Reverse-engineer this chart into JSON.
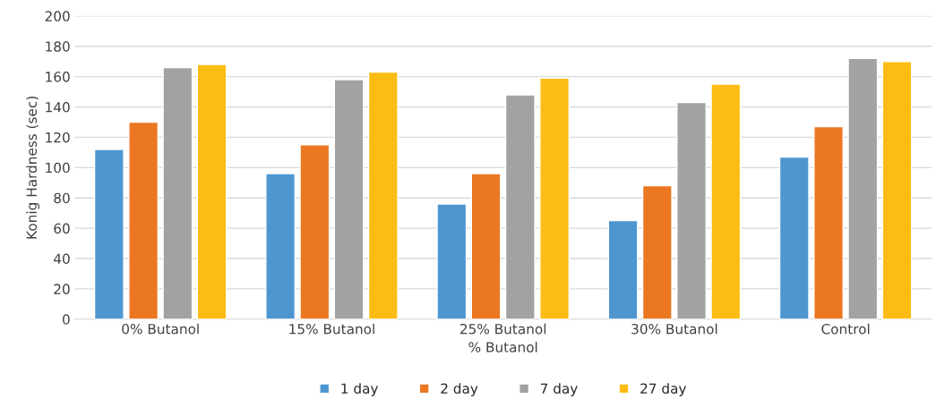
{
  "chart_data": {
    "type": "bar",
    "xlabel": "% Butanol",
    "ylabel": "Konig Hardness (sec)",
    "categories": [
      "0% Butanol",
      "15% Butanol",
      "25% Butanol",
      "30% Butanol",
      "Control"
    ],
    "series": [
      {
        "name": "1 day",
        "color": "#4e96d0",
        "values": [
          112,
          96,
          76,
          65,
          107
        ]
      },
      {
        "name": "2 day",
        "color": "#eb7723",
        "values": [
          130,
          115,
          96,
          88,
          127
        ]
      },
      {
        "name": "7 day",
        "color": "#a2a2a0",
        "values": [
          166,
          158,
          148,
          143,
          172
        ]
      },
      {
        "name": "27 day",
        "color": "#fbbd14",
        "values": [
          168,
          163,
          159,
          155,
          170
        ]
      }
    ],
    "ylim": [
      0,
      200
    ],
    "yticks": [
      0,
      20,
      40,
      60,
      80,
      100,
      120,
      140,
      160,
      180,
      200
    ],
    "grid": "y",
    "legend": "bottom"
  }
}
